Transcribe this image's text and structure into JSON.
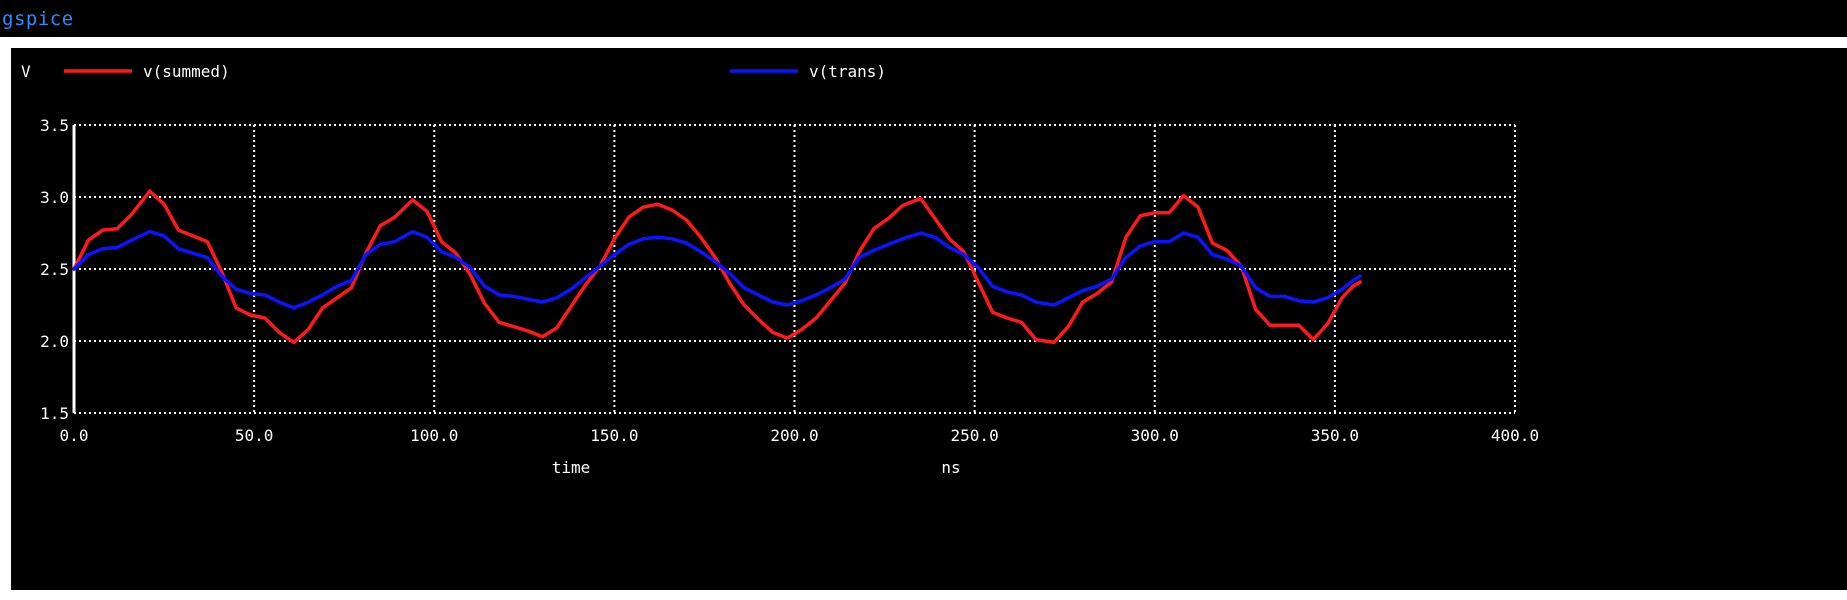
{
  "window": {
    "title": "gspice"
  },
  "colors": {
    "background": "#000000",
    "frame": "#ffffff",
    "grid": "#ffffff",
    "title": "#2a8cff",
    "summed": "#ff1a1a",
    "trans": "#0a14ff"
  },
  "chart_data": {
    "type": "line",
    "ylabel": "V",
    "xlabel": "time",
    "x_unit": "ns",
    "xlim": [
      0,
      400
    ],
    "ylim": [
      1.5,
      3.5
    ],
    "x_ticks": [
      "0.0",
      "50.0",
      "100.0",
      "150.0",
      "200.0",
      "250.0",
      "300.0",
      "350.0",
      "400.0"
    ],
    "y_ticks": [
      "1.5",
      "2.0",
      "2.5",
      "3.0",
      "3.5"
    ],
    "grid": true,
    "grid_style": "dotted",
    "legend_placement": "top",
    "series": [
      {
        "name": "v(summed)",
        "color": "#ff1a1a",
        "x": [
          0,
          4,
          8,
          12,
          16,
          21,
          25,
          29,
          33,
          37,
          41,
          45,
          49,
          53,
          57,
          61,
          65,
          69,
          73,
          77,
          81,
          85,
          89,
          94,
          98,
          102,
          106,
          110,
          114,
          118,
          122,
          126,
          130,
          134,
          138,
          142,
          146,
          150,
          154,
          158,
          162,
          166,
          170,
          174,
          178,
          182,
          186,
          190,
          194,
          198,
          202,
          206,
          210,
          214,
          218,
          222,
          226,
          230,
          235,
          239,
          243,
          247,
          251,
          255,
          259,
          263,
          267,
          272,
          276,
          280,
          284,
          288,
          292,
          296,
          300,
          304,
          308,
          312,
          316,
          320,
          324,
          328,
          332,
          336,
          340,
          344,
          348,
          352,
          355,
          357
        ],
        "y": [
          2.5,
          2.7,
          2.77,
          2.78,
          2.88,
          3.04,
          2.95,
          2.77,
          2.73,
          2.69,
          2.48,
          2.23,
          2.18,
          2.16,
          2.06,
          1.99,
          2.08,
          2.23,
          2.3,
          2.37,
          2.61,
          2.8,
          2.86,
          2.98,
          2.9,
          2.69,
          2.61,
          2.46,
          2.26,
          2.13,
          2.1,
          2.07,
          2.03,
          2.09,
          2.24,
          2.39,
          2.52,
          2.71,
          2.86,
          2.93,
          2.95,
          2.91,
          2.84,
          2.72,
          2.58,
          2.4,
          2.25,
          2.15,
          2.06,
          2.02,
          2.08,
          2.16,
          2.28,
          2.4,
          2.62,
          2.78,
          2.85,
          2.94,
          2.99,
          2.85,
          2.71,
          2.62,
          2.41,
          2.2,
          2.16,
          2.13,
          2.01,
          1.99,
          2.1,
          2.27,
          2.33,
          2.41,
          2.72,
          2.87,
          2.89,
          2.89,
          3.01,
          2.93,
          2.68,
          2.63,
          2.52,
          2.22,
          2.11,
          2.11,
          2.11,
          2.01,
          2.12,
          2.3,
          2.38,
          2.41
        ]
      },
      {
        "name": "v(trans)",
        "color": "#0a14ff",
        "x": [
          0,
          4,
          8,
          12,
          16,
          21,
          25,
          29,
          33,
          37,
          41,
          45,
          49,
          53,
          57,
          61,
          65,
          69,
          73,
          77,
          81,
          85,
          89,
          94,
          98,
          102,
          106,
          110,
          114,
          118,
          122,
          126,
          130,
          134,
          138,
          142,
          146,
          150,
          154,
          158,
          162,
          166,
          170,
          174,
          178,
          182,
          186,
          190,
          194,
          198,
          202,
          206,
          210,
          214,
          218,
          222,
          226,
          230,
          235,
          239,
          243,
          247,
          251,
          255,
          259,
          263,
          267,
          272,
          276,
          280,
          284,
          288,
          292,
          296,
          300,
          304,
          308,
          312,
          316,
          320,
          324,
          328,
          332,
          336,
          340,
          344,
          348,
          352,
          355,
          357
        ],
        "y": [
          2.5,
          2.6,
          2.64,
          2.65,
          2.7,
          2.76,
          2.73,
          2.64,
          2.61,
          2.58,
          2.45,
          2.36,
          2.33,
          2.32,
          2.27,
          2.23,
          2.27,
          2.32,
          2.38,
          2.42,
          2.6,
          2.67,
          2.69,
          2.76,
          2.72,
          2.62,
          2.58,
          2.51,
          2.38,
          2.32,
          2.31,
          2.29,
          2.27,
          2.3,
          2.36,
          2.44,
          2.52,
          2.6,
          2.67,
          2.71,
          2.72,
          2.71,
          2.68,
          2.62,
          2.55,
          2.47,
          2.37,
          2.32,
          2.27,
          2.25,
          2.28,
          2.32,
          2.37,
          2.43,
          2.58,
          2.63,
          2.67,
          2.71,
          2.75,
          2.72,
          2.65,
          2.6,
          2.51,
          2.38,
          2.34,
          2.32,
          2.27,
          2.25,
          2.3,
          2.35,
          2.38,
          2.43,
          2.58,
          2.66,
          2.69,
          2.69,
          2.75,
          2.72,
          2.6,
          2.57,
          2.52,
          2.37,
          2.31,
          2.31,
          2.28,
          2.27,
          2.3,
          2.36,
          2.42,
          2.45
        ]
      }
    ]
  }
}
